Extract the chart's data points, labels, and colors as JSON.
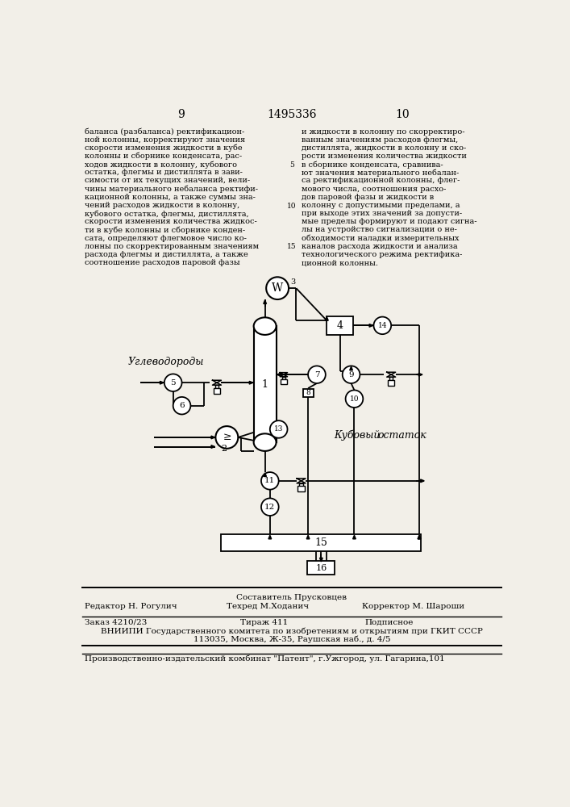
{
  "bg_color": "#f2efe8",
  "page_num_left": "9",
  "page_num_center": "1495336",
  "page_num_right": "10",
  "text_left_lines": [
    "баланса (разбаланса) ректификацион-",
    "ной колонны, корректируют значения",
    "скорости изменения жидкости в кубе",
    "колонны и сборнике конденсата, рас-",
    "ходов жидкости в колонну, кубового",
    "остатка, флегмы и дистиллята в зави-",
    "симости от их текущих значений, вели-",
    "чины материального небаланса ректифи-",
    "кационной колонны, а также суммы зна-",
    "чений расходов жидкости в колонну,",
    "кубового остатка, флегмы, дистиллята,",
    "скорости изменения количества жидкос-",
    "ти в кубе колонны и сборнике конден-",
    "сата, определяют флегмовое число ко-",
    "лонны по скорректированным значениям",
    "расхода флегмы и дистиллята, а также",
    "соотношение расходов паровой фазы"
  ],
  "text_right_lines": [
    "и жидкости в колонну по скорректиро-",
    "ванным значениям расходов флегмы,",
    "дистиллята, жидкости в колонну и ско-",
    "рости изменения количества жидкости",
    "в сборнике конденсата, сравнива-",
    "ют значения материального небалан-",
    "са ректификационной колонны, флег-",
    "мового числа, соотношения расхо-",
    "дов паровой фазы и жидкости в",
    "колонну с допустимыми пределами, а",
    "при выходе этих значений за допусти-",
    "мые пределы формируют и подают сигна-",
    "лы на устройство сигнализации о не-",
    "обходимости наладки измерительных",
    "каналов расхода жидкости и анализа",
    "технологического режима ректифика-",
    "ционной колонны."
  ],
  "line_numbers": [
    {
      "n": "5",
      "row": 4
    },
    {
      "n": "10",
      "row": 9
    },
    {
      "n": "15",
      "row": 14
    }
  ],
  "footer_line1": "Составитель Прусковцев",
  "footer_editor": "Редактор Н. Рогулич",
  "footer_techred": "Техред М.Ходанич",
  "footer_corrector": "Корректор М. Шароши",
  "footer_order": "Заказ 4210/23",
  "footer_tirazh": "Тираж 411",
  "footer_podpisnoe": "Подписное",
  "footer_vniipи": "ВНИИПИ Государственного комитета по изобретениям и открытиям при ГКИТ СССР",
  "footer_address": "113035, Москва, Ж-35, Раушская наб., д. 4/5",
  "footer_zavod": "Производственно-издательский комбинат \"Патент\", г.Ужгород, ул. Гагарина,101",
  "label_uglevod": "Углеводороды",
  "label_kubovy": "Кубовый",
  "label_ostatok": "остаток"
}
